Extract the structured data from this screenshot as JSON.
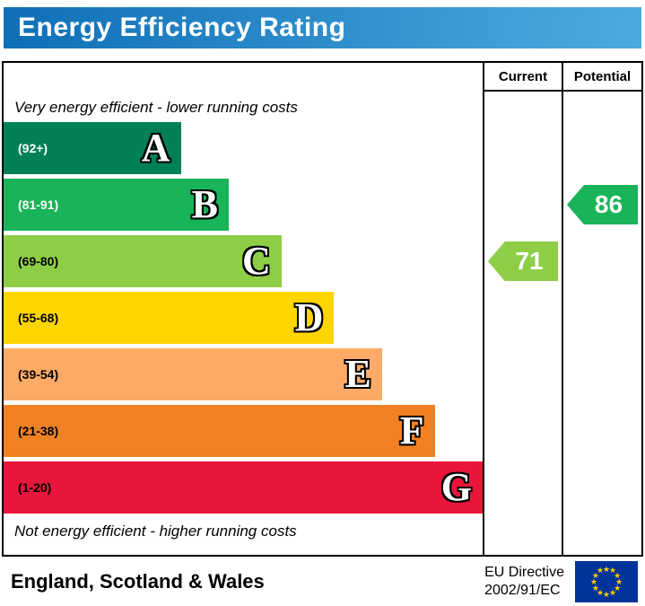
{
  "title": "Energy Efficiency Rating",
  "table": {
    "current_header": "Current",
    "potential_header": "Potential"
  },
  "captions": {
    "top": "Very energy efficient - lower running costs",
    "bottom": "Not energy efficient - higher running costs"
  },
  "chart_data": {
    "type": "bar",
    "title": "Energy Efficiency Rating",
    "bands": [
      {
        "letter": "A",
        "range": "(92+)",
        "color": "#008054",
        "width_pct": 37,
        "label_color": "#ffffff"
      },
      {
        "letter": "B",
        "range": "(81-91)",
        "color": "#19b459",
        "width_pct": 47,
        "label_color": "#ffffff"
      },
      {
        "letter": "C",
        "range": "(69-80)",
        "color": "#8dce46",
        "width_pct": 58,
        "label_color": "#000000"
      },
      {
        "letter": "D",
        "range": "(55-68)",
        "color": "#ffd500",
        "width_pct": 69,
        "label_color": "#000000"
      },
      {
        "letter": "E",
        "range": "(39-54)",
        "color": "#fcaa65",
        "width_pct": 79,
        "label_color": "#000000"
      },
      {
        "letter": "F",
        "range": "(21-38)",
        "color": "#ef8023",
        "width_pct": 90,
        "label_color": "#000000"
      },
      {
        "letter": "G",
        "range": "(1-20)",
        "color": "#e9153b",
        "width_pct": 100,
        "label_color": "#000000"
      }
    ],
    "current": {
      "value": "71",
      "band": "C",
      "color": "#8dce46"
    },
    "potential": {
      "value": "86",
      "band": "B",
      "color": "#19b459"
    }
  },
  "footer": {
    "region": "England, Scotland & Wales",
    "directive_line1": "EU Directive",
    "directive_line2": "2002/91/EC"
  },
  "eu_flag": {
    "background": "#003399",
    "star_color": "#ffcc00",
    "star_count": 12
  },
  "header_colors": {
    "gradient_start": "#0f6fb7",
    "gradient_end": "#4cacdf",
    "text": "#ffffff"
  }
}
